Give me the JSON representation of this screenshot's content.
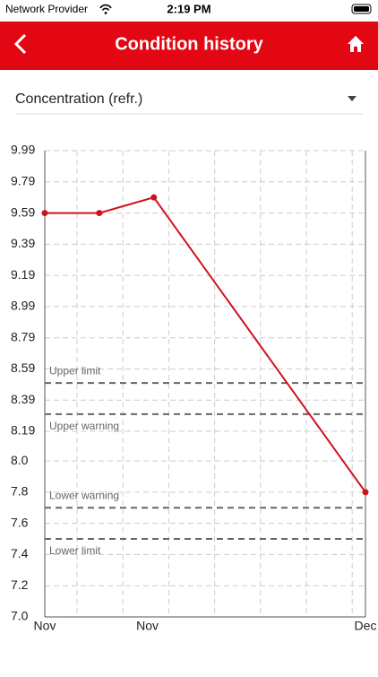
{
  "status_bar": {
    "carrier": "Network Provider",
    "time": "2:19 PM"
  },
  "header": {
    "title": "Condition history"
  },
  "selector": {
    "label": "Concentration (refr.)"
  },
  "chart_data": {
    "type": "line",
    "x": [
      0,
      17,
      34,
      100
    ],
    "xlim": [
      0,
      100
    ],
    "xticks": [
      {
        "value": 0,
        "label": "Nov"
      },
      {
        "value": 32,
        "label": "Nov"
      },
      {
        "value": 100,
        "label": "Dec"
      }
    ],
    "series": [
      {
        "color": "#d0121f",
        "values": [
          9.59,
          9.59,
          9.69,
          7.8
        ]
      }
    ],
    "ylim": [
      7.0,
      9.99
    ],
    "yticks": [
      9.99,
      9.79,
      9.59,
      9.39,
      9.19,
      8.99,
      8.79,
      8.59,
      8.39,
      8.19,
      {
        "value": 8,
        "label": "8.0"
      },
      7.8,
      7.6,
      7.4,
      7.2,
      {
        "value": 7,
        "label": "7.0"
      }
    ],
    "grid": true,
    "limits": [
      {
        "label": "Upper limit",
        "value": 8.5
      },
      {
        "label": "Upper warning",
        "value": 8.3
      },
      {
        "label": "Lower warning",
        "value": 7.7
      },
      {
        "label": "Lower limit",
        "value": 7.5
      }
    ]
  }
}
